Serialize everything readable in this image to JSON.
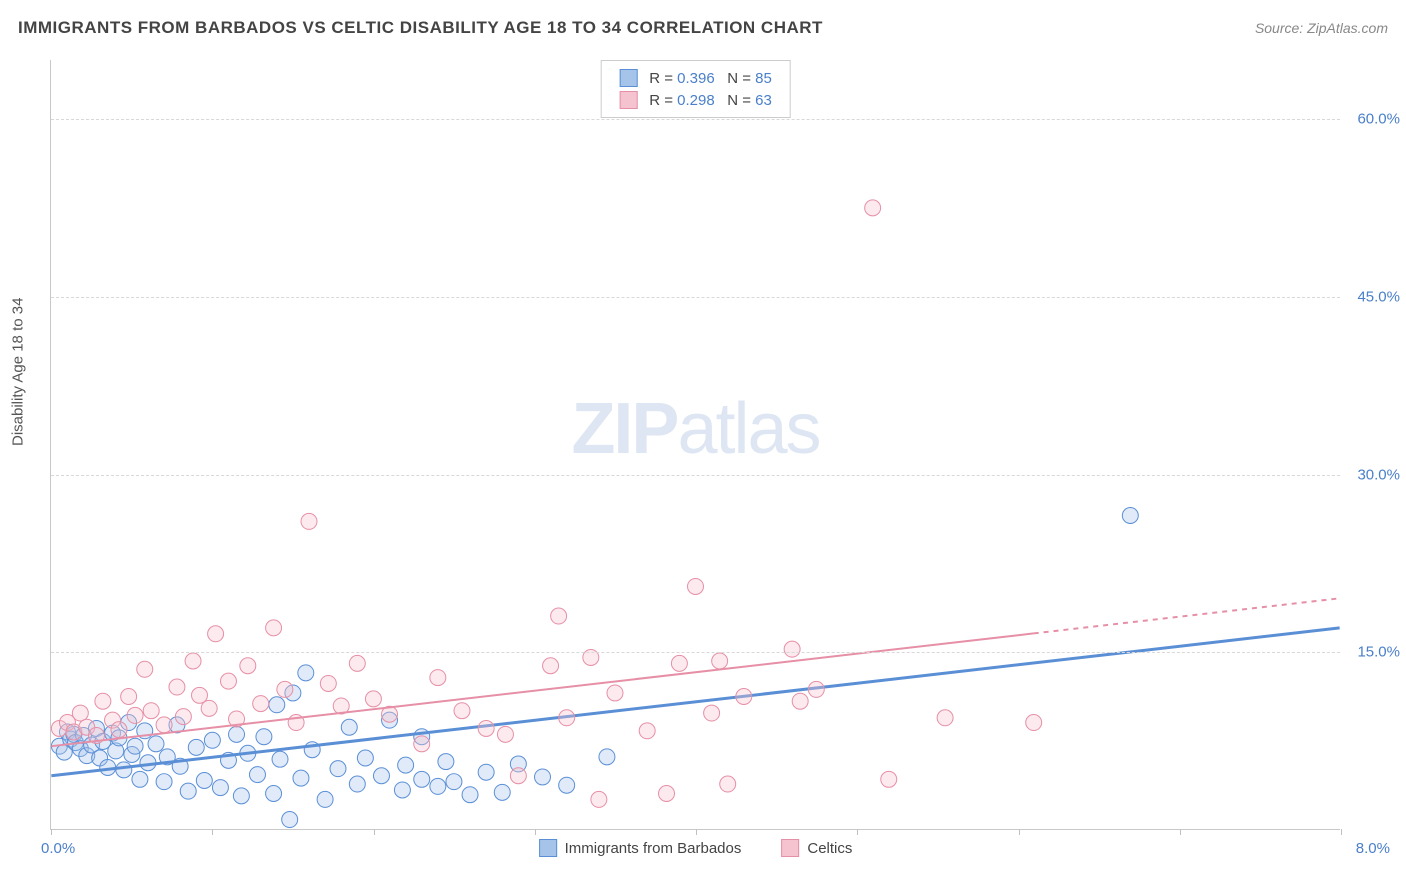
{
  "title": "IMMIGRANTS FROM BARBADOS VS CELTIC DISABILITY AGE 18 TO 34 CORRELATION CHART",
  "source_label": "Source: ZipAtlas.com",
  "watermark": {
    "bold": "ZIP",
    "light": "atlas"
  },
  "y_axis_label": "Disability Age 18 to 34",
  "chart": {
    "type": "scatter",
    "xlim": [
      0.0,
      8.0
    ],
    "ylim": [
      0.0,
      65.0
    ],
    "x_origin_label": "0.0%",
    "x_max_label": "8.0%",
    "x_ticks": [
      0,
      1,
      2,
      3,
      4,
      5,
      6,
      7,
      8
    ],
    "y_ticks": [
      {
        "value": 60.0,
        "label": "60.0%"
      },
      {
        "value": 45.0,
        "label": "45.0%"
      },
      {
        "value": 30.0,
        "label": "30.0%"
      },
      {
        "value": 15.0,
        "label": "15.0%"
      }
    ],
    "background_color": "#ffffff",
    "grid_color": "#d8d8d8",
    "axis_color": "#c8c8c8",
    "tick_label_color": "#4a7fc9",
    "marker_radius": 8,
    "marker_fill_opacity": 0.35,
    "series": [
      {
        "name": "Immigrants from Barbados",
        "fill_color": "#a6c4ea",
        "stroke_color": "#5a8fd6",
        "R": 0.396,
        "N": 85,
        "trend_line": {
          "x1": 0.0,
          "y1": 4.5,
          "x2": 8.0,
          "y2": 17.0,
          "dash_from_x": null,
          "stroke_width": 3
        },
        "points_xy": [
          [
            0.05,
            7.0
          ],
          [
            0.08,
            6.5
          ],
          [
            0.1,
            8.2
          ],
          [
            0.12,
            7.6
          ],
          [
            0.14,
            8.0
          ],
          [
            0.15,
            7.3
          ],
          [
            0.18,
            6.8
          ],
          [
            0.2,
            7.9
          ],
          [
            0.22,
            6.2
          ],
          [
            0.25,
            7.1
          ],
          [
            0.28,
            8.5
          ],
          [
            0.3,
            6.0
          ],
          [
            0.32,
            7.4
          ],
          [
            0.35,
            5.2
          ],
          [
            0.38,
            8.1
          ],
          [
            0.4,
            6.6
          ],
          [
            0.42,
            7.7
          ],
          [
            0.45,
            5.0
          ],
          [
            0.48,
            9.0
          ],
          [
            0.5,
            6.3
          ],
          [
            0.52,
            7.0
          ],
          [
            0.55,
            4.2
          ],
          [
            0.58,
            8.3
          ],
          [
            0.6,
            5.6
          ],
          [
            0.65,
            7.2
          ],
          [
            0.7,
            4.0
          ],
          [
            0.72,
            6.1
          ],
          [
            0.78,
            8.8
          ],
          [
            0.8,
            5.3
          ],
          [
            0.85,
            3.2
          ],
          [
            0.9,
            6.9
          ],
          [
            0.95,
            4.1
          ],
          [
            1.0,
            7.5
          ],
          [
            1.05,
            3.5
          ],
          [
            1.1,
            5.8
          ],
          [
            1.15,
            8.0
          ],
          [
            1.18,
            2.8
          ],
          [
            1.22,
            6.4
          ],
          [
            1.28,
            4.6
          ],
          [
            1.32,
            7.8
          ],
          [
            1.38,
            3.0
          ],
          [
            1.4,
            10.5
          ],
          [
            1.42,
            5.9
          ],
          [
            1.48,
            0.8
          ],
          [
            1.5,
            11.5
          ],
          [
            1.55,
            4.3
          ],
          [
            1.58,
            13.2
          ],
          [
            1.62,
            6.7
          ],
          [
            1.7,
            2.5
          ],
          [
            1.78,
            5.1
          ],
          [
            1.85,
            8.6
          ],
          [
            1.9,
            3.8
          ],
          [
            1.95,
            6.0
          ],
          [
            2.05,
            4.5
          ],
          [
            2.1,
            9.2
          ],
          [
            2.18,
            3.3
          ],
          [
            2.2,
            5.4
          ],
          [
            2.3,
            4.2
          ],
          [
            2.3,
            7.8
          ],
          [
            2.4,
            3.6
          ],
          [
            2.45,
            5.7
          ],
          [
            2.5,
            4.0
          ],
          [
            2.6,
            2.9
          ],
          [
            2.7,
            4.8
          ],
          [
            2.8,
            3.1
          ],
          [
            2.9,
            5.5
          ],
          [
            3.05,
            4.4
          ],
          [
            3.2,
            3.7
          ],
          [
            3.45,
            6.1
          ],
          [
            6.7,
            26.5
          ]
        ]
      },
      {
        "name": "Celtics",
        "fill_color": "#f5c2cf",
        "stroke_color": "#e68fa6",
        "R": 0.298,
        "N": 63,
        "trend_line": {
          "x1": 0.0,
          "y1": 7.0,
          "x2": 8.0,
          "y2": 19.5,
          "dash_from_x": 6.1,
          "stroke_width": 2
        },
        "points_xy": [
          [
            0.05,
            8.5
          ],
          [
            0.1,
            9.0
          ],
          [
            0.14,
            8.2
          ],
          [
            0.18,
            9.8
          ],
          [
            0.22,
            8.6
          ],
          [
            0.28,
            7.9
          ],
          [
            0.32,
            10.8
          ],
          [
            0.38,
            9.2
          ],
          [
            0.42,
            8.4
          ],
          [
            0.48,
            11.2
          ],
          [
            0.52,
            9.6
          ],
          [
            0.58,
            13.5
          ],
          [
            0.62,
            10.0
          ],
          [
            0.7,
            8.8
          ],
          [
            0.78,
            12.0
          ],
          [
            0.82,
            9.5
          ],
          [
            0.88,
            14.2
          ],
          [
            0.92,
            11.3
          ],
          [
            0.98,
            10.2
          ],
          [
            1.02,
            16.5
          ],
          [
            1.1,
            12.5
          ],
          [
            1.15,
            9.3
          ],
          [
            1.22,
            13.8
          ],
          [
            1.3,
            10.6
          ],
          [
            1.38,
            17.0
          ],
          [
            1.45,
            11.8
          ],
          [
            1.52,
            9.0
          ],
          [
            1.6,
            26.0
          ],
          [
            1.72,
            12.3
          ],
          [
            1.8,
            10.4
          ],
          [
            1.9,
            14.0
          ],
          [
            2.0,
            11.0
          ],
          [
            2.1,
            9.7
          ],
          [
            2.3,
            7.2
          ],
          [
            2.4,
            12.8
          ],
          [
            2.55,
            10.0
          ],
          [
            2.7,
            8.5
          ],
          [
            2.82,
            8.0
          ],
          [
            2.9,
            4.5
          ],
          [
            3.1,
            13.8
          ],
          [
            3.15,
            18.0
          ],
          [
            3.2,
            9.4
          ],
          [
            3.35,
            14.5
          ],
          [
            3.4,
            2.5
          ],
          [
            3.5,
            11.5
          ],
          [
            3.7,
            8.3
          ],
          [
            3.82,
            3.0
          ],
          [
            3.9,
            14.0
          ],
          [
            4.0,
            20.5
          ],
          [
            4.1,
            9.8
          ],
          [
            4.15,
            14.2
          ],
          [
            4.2,
            3.8
          ],
          [
            4.3,
            11.2
          ],
          [
            4.6,
            15.2
          ],
          [
            4.65,
            10.8
          ],
          [
            4.75,
            11.8
          ],
          [
            5.1,
            52.5
          ],
          [
            5.2,
            4.2
          ],
          [
            5.55,
            9.4
          ],
          [
            6.1,
            9.0
          ]
        ]
      }
    ],
    "stats_legend_labels": {
      "R_prefix": "R =",
      "N_prefix": "N ="
    },
    "bottom_legend": [
      {
        "label": "Immigrants from Barbados",
        "fill": "#a6c4ea",
        "stroke": "#5a8fd6"
      },
      {
        "label": "Celtics",
        "fill": "#f5c2cf",
        "stroke": "#e68fa6"
      }
    ]
  }
}
